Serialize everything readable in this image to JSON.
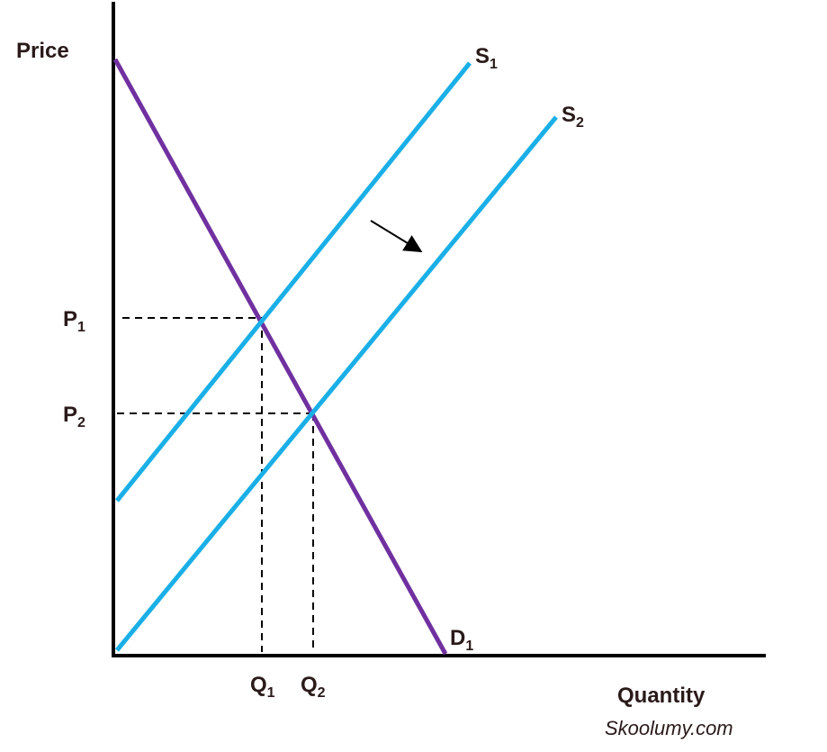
{
  "axes": {
    "y_label": "Price",
    "x_label": "Quantity"
  },
  "curves": [
    {
      "letter": "S",
      "sub": "1"
    },
    {
      "letter": "S",
      "sub": "2"
    },
    {
      "letter": "D",
      "sub": "1"
    }
  ],
  "prices": [
    {
      "letter": "P",
      "sub": "1"
    },
    {
      "letter": "P",
      "sub": "2"
    }
  ],
  "quantities": [
    {
      "letter": "Q",
      "sub": "1"
    },
    {
      "letter": "Q",
      "sub": "2"
    }
  ],
  "watermark": "Skoolumy.com"
}
